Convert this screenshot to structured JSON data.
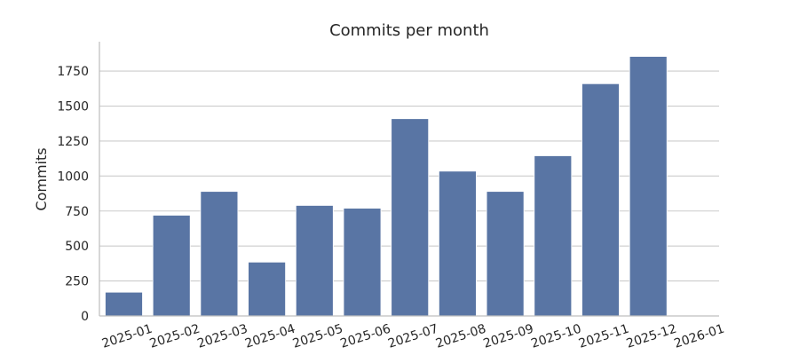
{
  "chart_data": {
    "type": "bar",
    "title": "Commits per month",
    "xlabel": "",
    "ylabel": "Commits",
    "categories": [
      "2025-01",
      "2025-02",
      "2025-03",
      "2025-04",
      "2025-05",
      "2025-06",
      "2025-07",
      "2025-08",
      "2025-09",
      "2025-10",
      "2025-11",
      "2025-12",
      "2026-01"
    ],
    "values": [
      170,
      720,
      890,
      385,
      790,
      770,
      1410,
      1035,
      890,
      1145,
      1660,
      1855,
      0
    ],
    "ylim": [
      0,
      1960
    ],
    "yticks": [
      0,
      250,
      500,
      750,
      1000,
      1250,
      1500,
      1750
    ],
    "ytick_labels": [
      "0",
      "250",
      "500",
      "750",
      "1000",
      "1250",
      "1500",
      "1750"
    ],
    "grid": "horizontal",
    "bar_color": "#5975a4"
  }
}
